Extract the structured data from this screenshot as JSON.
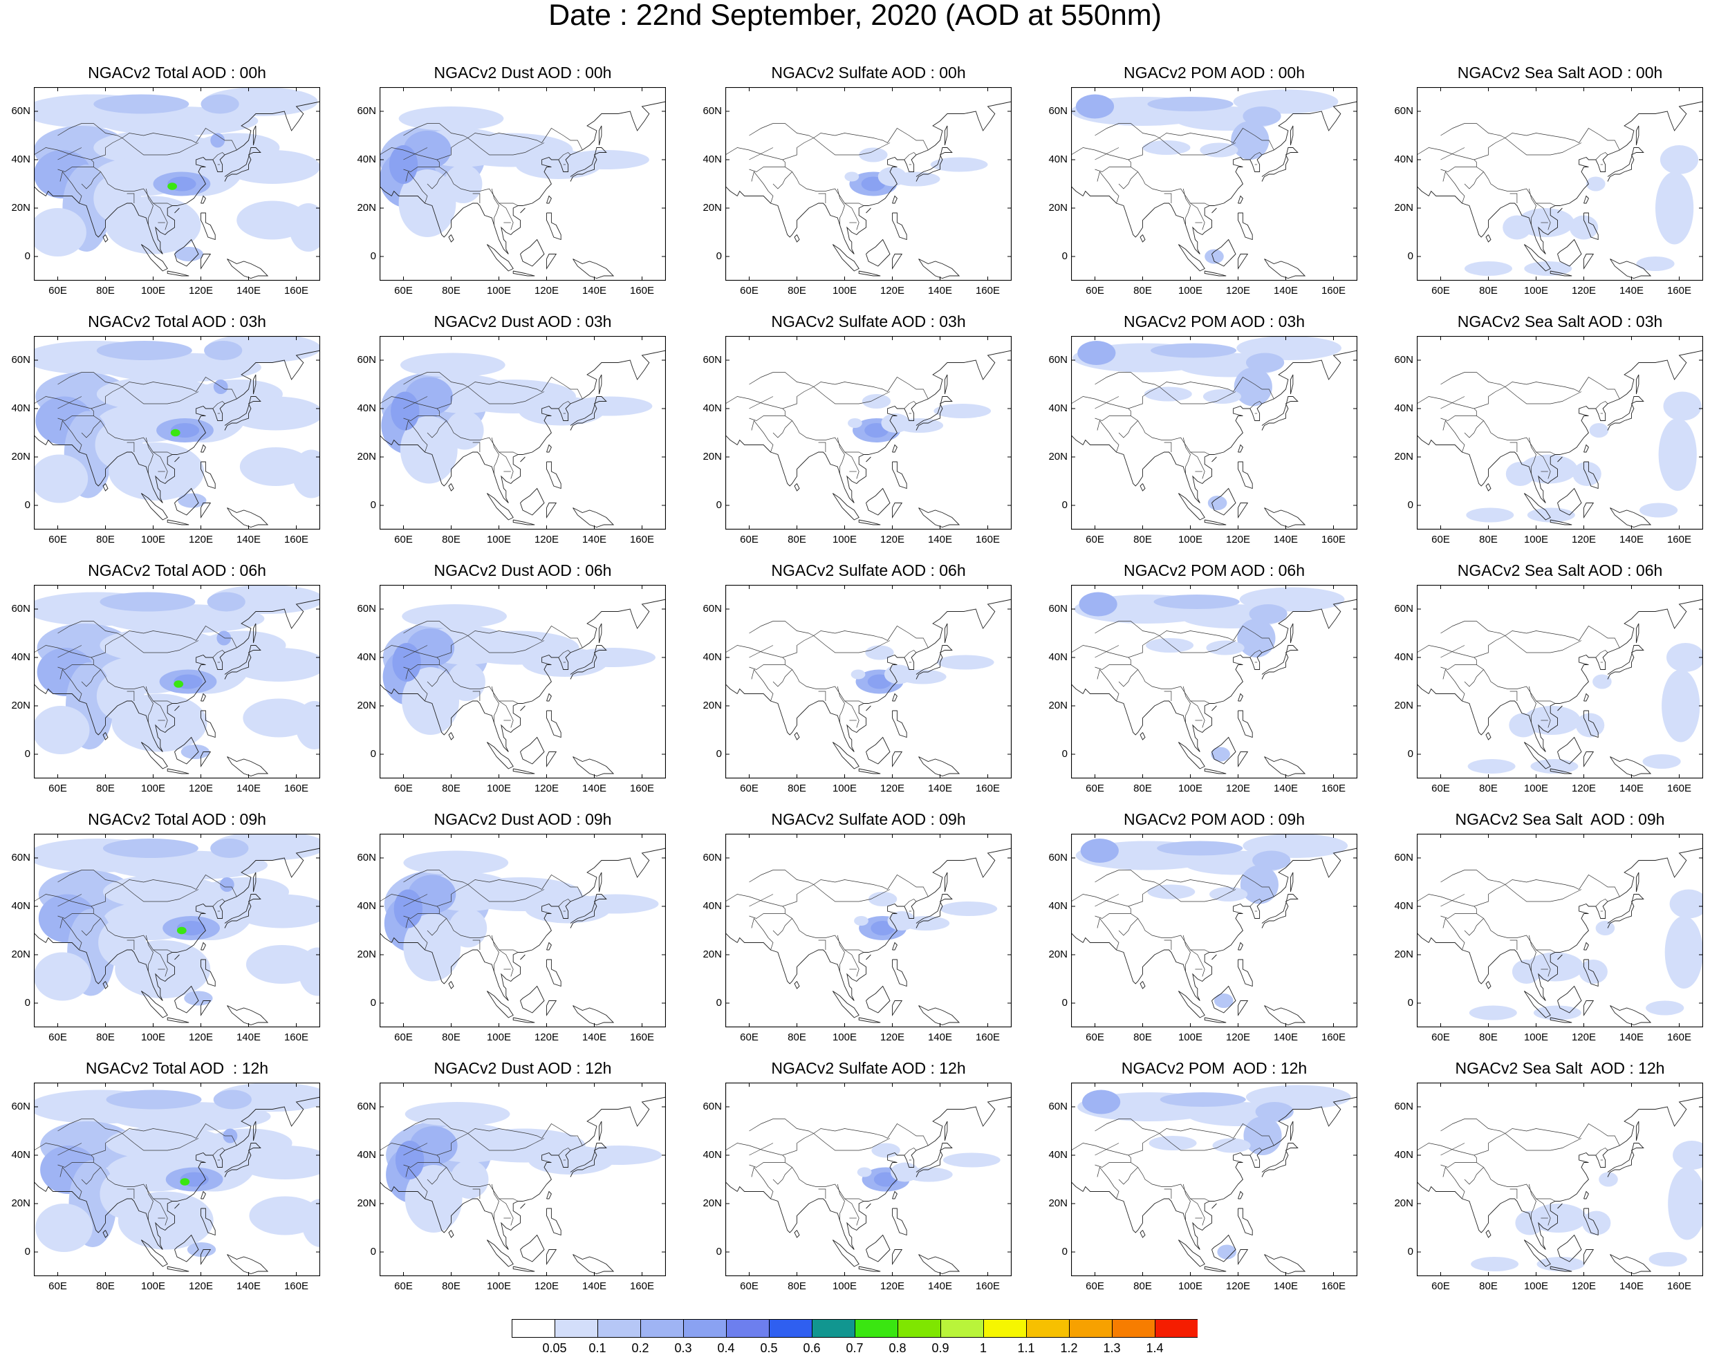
{
  "page_title": "Date : 22nd  September, 2020 (AOD at 550nm)",
  "lat_ticks": [
    "60N",
    "40N",
    "20N",
    "0"
  ],
  "lon_ticks": [
    "60E",
    "80E",
    "100E",
    "120E",
    "140E",
    "160E"
  ],
  "species": [
    "Total",
    "Dust",
    "Sulfate",
    "POM",
    "Sea Salt"
  ],
  "panels": [
    [
      "NGACv2 Total AOD : 00h",
      "NGACv2 Dust AOD : 00h",
      "NGACv2 Sulfate AOD : 00h",
      "NGACv2 POM AOD : 00h",
      "NGACv2 Sea Salt AOD : 00h"
    ],
    [
      "NGACv2 Total AOD : 03h",
      "NGACv2 Dust AOD : 03h",
      "NGACv2 Sulfate AOD : 03h",
      "NGACv2 POM AOD : 03h",
      "NGACv2 Sea Salt AOD : 03h"
    ],
    [
      "NGACv2 Total AOD : 06h",
      "NGACv2 Dust AOD : 06h",
      "NGACv2 Sulfate AOD : 06h",
      "NGACv2 POM AOD : 06h",
      "NGACv2 Sea Salt AOD : 06h"
    ],
    [
      "NGACv2 Total AOD : 09h",
      "NGACv2 Dust AOD : 09h",
      "NGACv2 Sulfate AOD : 09h",
      "NGACv2 POM AOD : 09h",
      "NGACv2 Sea Salt  AOD : 09h"
    ],
    [
      "NGACv2 Total AOD  : 12h",
      "NGACv2 Dust AOD : 12h",
      "NGACv2 Sulfate AOD : 12h",
      "NGACv2 POM  AOD : 12h",
      "NGACv2 Sea Salt  AOD : 12h"
    ]
  ],
  "colorbar": {
    "labels": [
      "0.05",
      "0.1",
      "0.2",
      "0.3",
      "0.4",
      "0.5",
      "0.6",
      "0.7",
      "0.8",
      "0.9",
      "1",
      "1.1",
      "1.2",
      "1.3",
      "1.4"
    ],
    "colors": [
      "#ffffff",
      "#d3defa",
      "#b6c7f6",
      "#9fb4f4",
      "#8aa2f2",
      "#6d7fee",
      "#2f5ff0",
      "#119690",
      "#3ae611",
      "#7fe600",
      "#b9f43a",
      "#f6f600",
      "#f7c000",
      "#f7a100",
      "#f77d00",
      "#f51d00"
    ]
  }
}
